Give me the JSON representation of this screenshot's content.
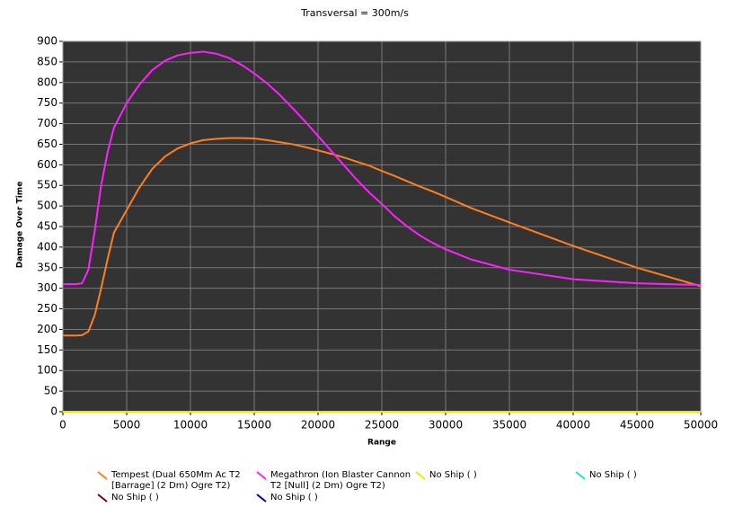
{
  "chart_data": {
    "type": "line",
    "title": "Transversal = 300m/s",
    "xlabel": "Range",
    "ylabel": "Damage Over Time",
    "x": [
      0,
      1000,
      1500,
      2000,
      2500,
      3000,
      3500,
      4000,
      5000,
      6000,
      7000,
      8000,
      9000,
      10000,
      11000,
      12000,
      13000,
      14000,
      15000,
      16000,
      17000,
      18000,
      19000,
      20000,
      21000,
      22000,
      23000,
      24000,
      25000,
      26000,
      27000,
      28000,
      29000,
      30000,
      32000,
      35000,
      40000,
      45000,
      50000
    ],
    "series": [
      {
        "name": "Tempest (Dual 650Mm Ac T2 [Barrage] (2 Dm) Ogre T2)",
        "color": "#ff7f1f",
        "values": [
          185,
          185,
          186,
          195,
          235,
          300,
          370,
          435,
          490,
          545,
          590,
          620,
          640,
          652,
          660,
          663,
          665,
          665,
          664,
          660,
          655,
          650,
          643,
          635,
          627,
          618,
          608,
          598,
          585,
          573,
          560,
          547,
          535,
          522,
          495,
          460,
          403,
          350,
          305
        ]
      },
      {
        "name": "Megathron (Ion Blaster Cannon T2 [Null] (2 Dm) Ogre T2)",
        "color": "#ff1fff",
        "values": [
          310,
          310,
          312,
          345,
          440,
          550,
          630,
          690,
          750,
          795,
          830,
          853,
          866,
          872,
          875,
          870,
          860,
          843,
          822,
          798,
          770,
          738,
          705,
          670,
          635,
          600,
          565,
          533,
          505,
          475,
          450,
          428,
          410,
          395,
          370,
          345,
          322,
          312,
          308
        ]
      },
      {
        "name": "No Ship ( )",
        "color": "#7f0000",
        "values": [
          0,
          0,
          0,
          0,
          0,
          0,
          0,
          0,
          0,
          0,
          0,
          0,
          0,
          0,
          0,
          0,
          0,
          0,
          0,
          0,
          0,
          0,
          0,
          0,
          0,
          0,
          0,
          0,
          0,
          0,
          0,
          0,
          0,
          0,
          0,
          0,
          0,
          0,
          0
        ]
      },
      {
        "name": "No Ship ( )",
        "color": "#0000a0",
        "values": [
          0,
          0,
          0,
          0,
          0,
          0,
          0,
          0,
          0,
          0,
          0,
          0,
          0,
          0,
          0,
          0,
          0,
          0,
          0,
          0,
          0,
          0,
          0,
          0,
          0,
          0,
          0,
          0,
          0,
          0,
          0,
          0,
          0,
          0,
          0,
          0,
          0,
          0,
          0
        ]
      },
      {
        "name": "No Ship ( )",
        "color": "#1fe0e0",
        "values": [
          0,
          0,
          0,
          0,
          0,
          0,
          0,
          0,
          0,
          0,
          0,
          0,
          0,
          0,
          0,
          0,
          0,
          0,
          0,
          0,
          0,
          0,
          0,
          0,
          0,
          0,
          0,
          0,
          0,
          0,
          0,
          0,
          0,
          0,
          0,
          0,
          0,
          0,
          0
        ]
      },
      {
        "name": "No Ship ( )",
        "color": "#e8e800",
        "values": [
          0,
          0,
          0,
          0,
          0,
          0,
          0,
          0,
          0,
          0,
          0,
          0,
          0,
          0,
          0,
          0,
          0,
          0,
          0,
          0,
          0,
          0,
          0,
          0,
          0,
          0,
          0,
          0,
          0,
          0,
          0,
          0,
          0,
          0,
          0,
          0,
          0,
          0,
          0
        ]
      }
    ],
    "xlim": [
      0,
      50000
    ],
    "ylim": [
      0,
      900
    ],
    "xticks": [
      0,
      5000,
      10000,
      15000,
      20000,
      25000,
      30000,
      35000,
      40000,
      45000,
      50000
    ],
    "yticks": [
      0,
      50,
      100,
      150,
      200,
      250,
      300,
      350,
      400,
      450,
      500,
      550,
      600,
      650,
      700,
      750,
      800,
      850,
      900
    ],
    "grid": true
  }
}
